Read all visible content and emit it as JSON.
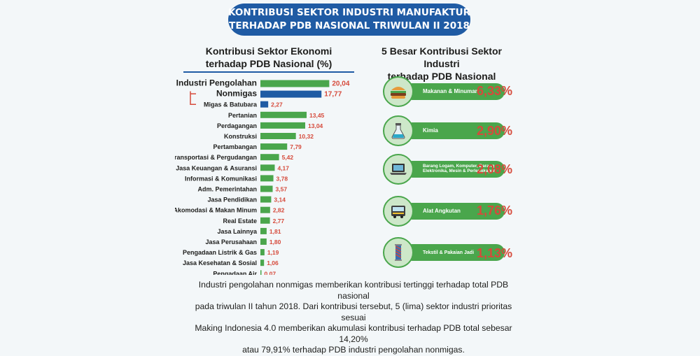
{
  "banner": {
    "line1": "KONTRIBUSI SEKTOR INDUSTRI MANUFAKTUR",
    "line2": "TERHADAP PDB NASIONAL TRIWULAN II 2018"
  },
  "left_title": {
    "line1": "Kontribusi Sektor Ekonomi",
    "line2": "terhadap PDB Nasional  (%)"
  },
  "right_title": {
    "line1": "5 Besar Kontribusi Sektor Industri",
    "line2": "terhadap PDB Nasional"
  },
  "colors": {
    "green": "#4aa64c",
    "blue": "#1f5ba4",
    "red_value": "#d64a3b",
    "banner": "#1f5ba4"
  },
  "chart_data": {
    "type": "bar",
    "orientation": "horizontal",
    "title": "Kontribusi Sektor Ekonomi terhadap PDB Nasional  (%)",
    "categories": [
      "Industri Pengolahan",
      "Nonmigas",
      "Migas & Batubara",
      "Pertanian",
      "Perdagangan",
      "Konstruksi",
      "Pertambangan",
      "Transportasi & Pergudangan",
      "Jasa Keuangan & Asuransi",
      "Informasi & Komunikasi",
      "Adm. Pemerintahan",
      "Jasa Pendidikan",
      "Akomodasi & Makan Minum",
      "Real Estate",
      "Jasa Lainnya",
      "Jasa Perusahaan",
      "Pengadaan Listrik & Gas",
      "Jasa Kesehatan & Sosial",
      "Pengadaan Air"
    ],
    "values": [
      20.04,
      17.77,
      2.27,
      13.45,
      13.04,
      10.32,
      7.79,
      5.42,
      4.17,
      3.78,
      3.57,
      3.14,
      2.82,
      2.77,
      1.81,
      1.8,
      1.19,
      1.06,
      0.07
    ],
    "value_labels": [
      "20,04",
      "17,77",
      "2,27",
      "13,45",
      "13,04",
      "10,32",
      "7,79",
      "5,42",
      "4,17",
      "3,78",
      "3,57",
      "3,14",
      "2,82",
      "2,77",
      "1,81",
      "1,80",
      "1,19",
      "1,06",
      "0,07"
    ],
    "highlight": [
      "green",
      "blue",
      "blue",
      "green",
      "green",
      "green",
      "green",
      "green",
      "green",
      "green",
      "green",
      "green",
      "green",
      "green",
      "green",
      "green",
      "green",
      "green",
      "green"
    ],
    "xlim": [
      0,
      22
    ]
  },
  "top5": [
    {
      "label": "Makanan & Minuman",
      "value": "6,33%",
      "icon": "burger-icon"
    },
    {
      "label": "Kimia",
      "value": "2,90%",
      "icon": "flask-icon"
    },
    {
      "label": "Barang Logam, Komputer, Barang Elektronika, Mesin & Perlengkapan",
      "value": "2,08%",
      "icon": "laptop-icon"
    },
    {
      "label": "Alat Angkutan",
      "value": "1,76%",
      "icon": "bus-icon"
    },
    {
      "label": "Tekstil & Pakaian Jadi",
      "value": "1,13%",
      "icon": "textile-icon"
    }
  ],
  "footer": {
    "line1": "Industri pengolahan nonmigas memberikan kontribusi tertinggi terhadap total PDB nasional",
    "line2": "pada triwulan II tahun 2018. Dari kontribusi tersebut, 5 (lima) sektor industri prioritas sesuai",
    "line3": "Making Indonesia 4.0 memberikan akumulasi kontribusi terhadap PDB total sebesar 14,20%",
    "line4": "atau 79,91% terhadap PDB industri pengolahan nonmigas."
  }
}
